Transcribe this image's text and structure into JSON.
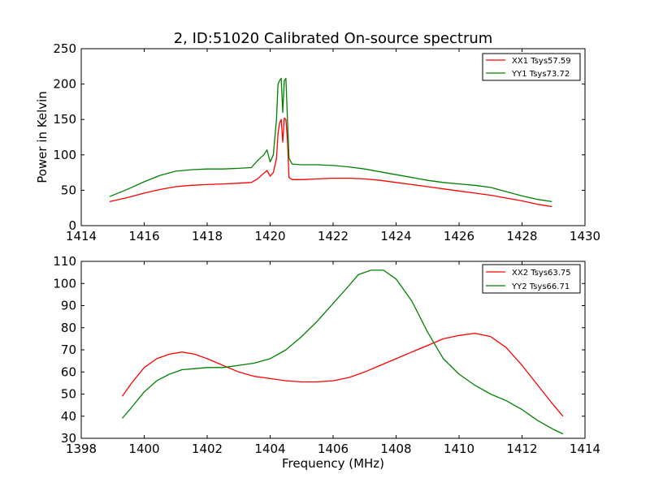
{
  "figure": {
    "title": "2, ID:51020 Calibrated On-source spectrum"
  },
  "chart_data": [
    {
      "type": "line",
      "title": "2, ID:51020 Calibrated On-source spectrum",
      "xlabel": "",
      "ylabel": "Power in Kelvin",
      "xlim": [
        1414,
        1430
      ],
      "ylim": [
        0,
        250
      ],
      "xticks": [
        "1414",
        "1416",
        "1418",
        "1420",
        "1422",
        "1424",
        "1426",
        "1428",
        "1430"
      ],
      "yticks": [
        "0",
        "50",
        "100",
        "150",
        "200",
        "250"
      ],
      "grid": false,
      "legend_position": "top-right",
      "series": [
        {
          "name": "XX1 Tsys57.59",
          "color": "#ff0000",
          "x": [
            1414.9,
            1415.5,
            1416.0,
            1416.5,
            1417.0,
            1417.5,
            1418.0,
            1418.5,
            1419.0,
            1419.4,
            1419.6,
            1419.75,
            1419.9,
            1420.0,
            1420.1,
            1420.2,
            1420.25,
            1420.3,
            1420.35,
            1420.4,
            1420.45,
            1420.5,
            1420.55,
            1420.6,
            1420.7,
            1421.0,
            1421.5,
            1422.0,
            1422.5,
            1423.0,
            1423.5,
            1424.0,
            1424.5,
            1425.0,
            1425.5,
            1426.0,
            1426.5,
            1427.0,
            1427.5,
            1428.0,
            1428.5,
            1428.95
          ],
          "values": [
            34,
            40,
            46,
            51,
            55,
            57,
            58,
            59,
            60,
            61,
            66,
            72,
            78,
            70,
            75,
            95,
            130,
            145,
            150,
            118,
            152,
            150,
            120,
            68,
            65,
            65,
            66,
            67,
            67,
            66,
            64,
            61,
            58,
            55,
            52,
            49,
            46,
            43,
            39,
            35,
            30,
            27
          ]
        },
        {
          "name": "YY1 Tsys73.72",
          "color": "#008000",
          "x": [
            1414.9,
            1415.5,
            1416.0,
            1416.5,
            1417.0,
            1417.5,
            1418.0,
            1418.5,
            1419.0,
            1419.4,
            1419.6,
            1419.8,
            1419.9,
            1420.0,
            1420.1,
            1420.2,
            1420.25,
            1420.3,
            1420.35,
            1420.4,
            1420.45,
            1420.5,
            1420.55,
            1420.6,
            1420.7,
            1421.0,
            1421.5,
            1422.0,
            1422.5,
            1423.0,
            1423.5,
            1424.0,
            1424.5,
            1425.0,
            1425.5,
            1426.0,
            1426.5,
            1427.0,
            1427.5,
            1428.0,
            1428.5,
            1428.95
          ],
          "values": [
            41,
            52,
            62,
            71,
            77,
            79,
            80,
            80,
            81,
            82,
            92,
            100,
            107,
            90,
            100,
            150,
            200,
            205,
            208,
            160,
            205,
            208,
            150,
            95,
            87,
            86,
            86,
            85,
            83,
            80,
            76,
            72,
            68,
            64,
            61,
            59,
            57,
            54,
            48,
            42,
            37,
            34
          ]
        }
      ]
    },
    {
      "type": "line",
      "title": "",
      "xlabel": "Frequency (MHz)",
      "ylabel": "",
      "xlim": [
        1398,
        1414
      ],
      "ylim": [
        30,
        110
      ],
      "xticks": [
        "1398",
        "1400",
        "1402",
        "1404",
        "1406",
        "1408",
        "1410",
        "1412",
        "1414"
      ],
      "yticks": [
        "30",
        "40",
        "50",
        "60",
        "70",
        "80",
        "90",
        "100",
        "110"
      ],
      "grid": false,
      "legend_position": "top-right",
      "series": [
        {
          "name": "XX2 Tsys63.75",
          "color": "#ff0000",
          "x": [
            1399.3,
            1399.6,
            1400.0,
            1400.4,
            1400.8,
            1401.2,
            1401.6,
            1402.0,
            1402.5,
            1403.0,
            1403.5,
            1404.0,
            1404.5,
            1405.0,
            1405.5,
            1406.0,
            1406.5,
            1407.0,
            1407.5,
            1408.0,
            1408.5,
            1409.0,
            1409.5,
            1410.0,
            1410.5,
            1411.0,
            1411.5,
            1412.0,
            1412.5,
            1413.0,
            1413.3
          ],
          "values": [
            49,
            55,
            62,
            66,
            68,
            69,
            68,
            66,
            63,
            60,
            58,
            57,
            56,
            55.5,
            55.5,
            56,
            57.5,
            60,
            63,
            66,
            69,
            72,
            75,
            76.5,
            77.5,
            76,
            71,
            63,
            54,
            45,
            40
          ]
        },
        {
          "name": "YY2 Tsys66.71",
          "color": "#008000",
          "x": [
            1399.3,
            1399.6,
            1400.0,
            1400.4,
            1400.8,
            1401.2,
            1401.6,
            1402.0,
            1402.5,
            1403.0,
            1403.5,
            1404.0,
            1404.5,
            1405.0,
            1405.5,
            1406.0,
            1406.5,
            1406.8,
            1407.2,
            1407.6,
            1408.0,
            1408.5,
            1409.0,
            1409.5,
            1410.0,
            1410.5,
            1411.0,
            1411.5,
            1412.0,
            1412.5,
            1413.0,
            1413.3
          ],
          "values": [
            39,
            44,
            51,
            56,
            59,
            61,
            61.5,
            62,
            62,
            63,
            64,
            66,
            70,
            76,
            83,
            91,
            99,
            104,
            106,
            106,
            102,
            92,
            78,
            66,
            59,
            54,
            50,
            47,
            43,
            38,
            34,
            32
          ]
        }
      ]
    }
  ]
}
